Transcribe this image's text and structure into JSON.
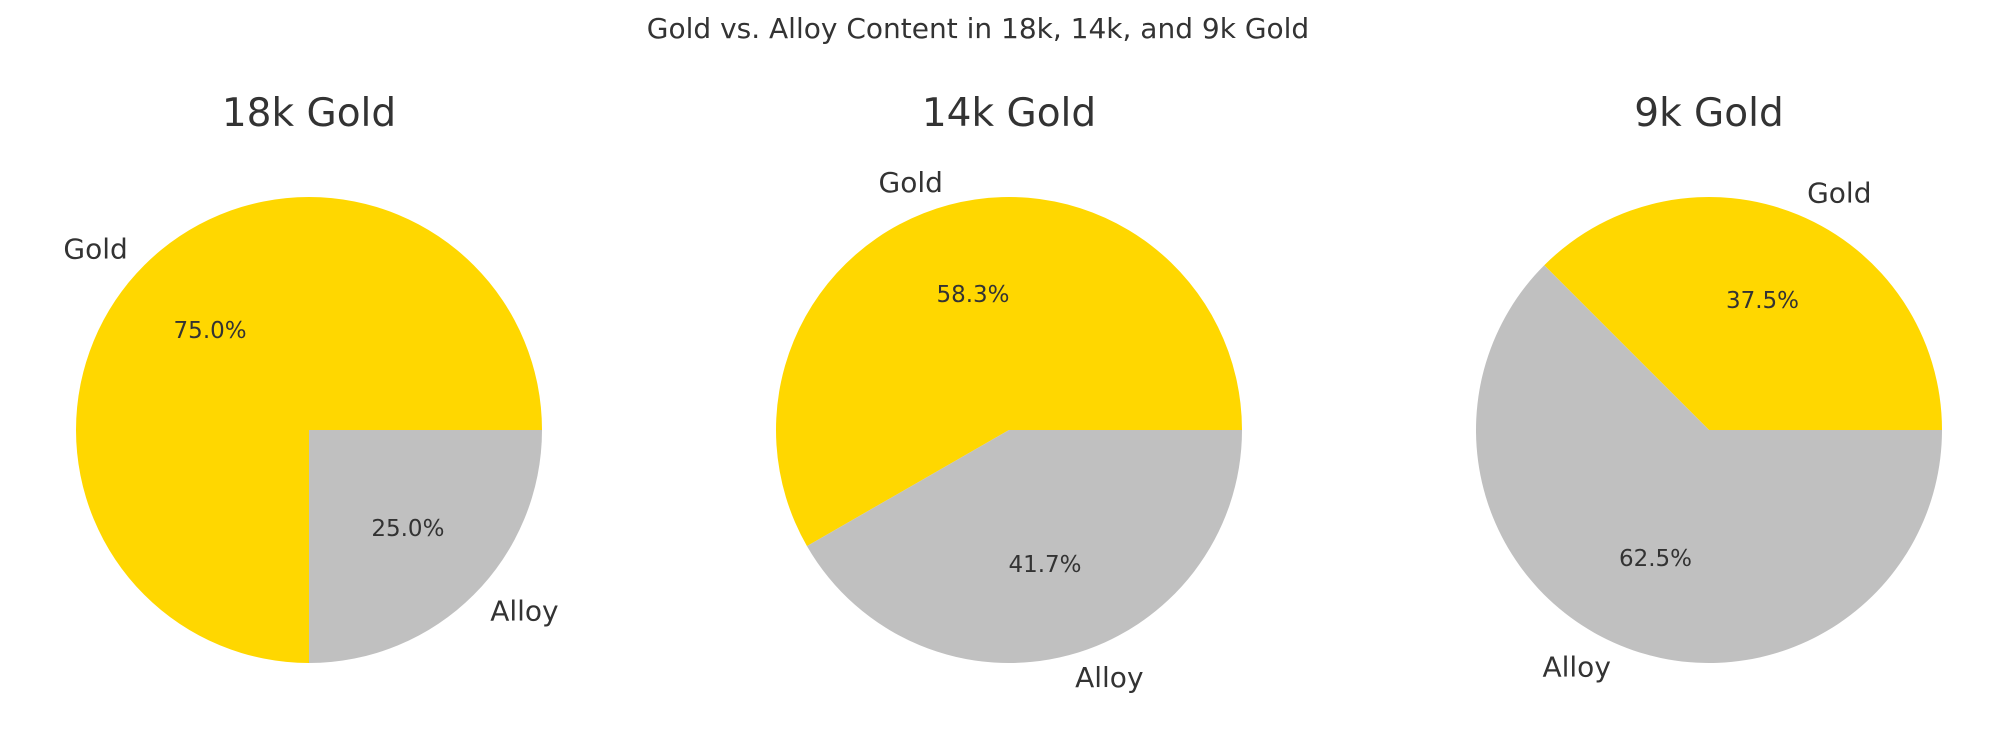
{
  "figure": {
    "title": "Gold vs. Alloy Content in 18k, 14k, and 9k Gold"
  },
  "chart_data": [
    {
      "type": "pie",
      "title": "18k Gold",
      "labels": [
        "Gold",
        "Alloy"
      ],
      "values": [
        75.0,
        25.0
      ],
      "autopct": [
        "75.0%",
        "25.0%"
      ],
      "colors": [
        "#FFD700",
        "#C0C0C0"
      ],
      "start_angle_deg": 0,
      "direction": "counterclockwise"
    },
    {
      "type": "pie",
      "title": "14k Gold",
      "labels": [
        "Gold",
        "Alloy"
      ],
      "values": [
        58.3,
        41.7
      ],
      "autopct": [
        "58.3%",
        "41.7%"
      ],
      "colors": [
        "#FFD700",
        "#C0C0C0"
      ],
      "start_angle_deg": 0,
      "direction": "counterclockwise"
    },
    {
      "type": "pie",
      "title": "9k Gold",
      "labels": [
        "Gold",
        "Alloy"
      ],
      "values": [
        37.5,
        62.5
      ],
      "autopct": [
        "37.5%",
        "62.5%"
      ],
      "colors": [
        "#FFD700",
        "#C0C0C0"
      ],
      "start_angle_deg": 0,
      "direction": "counterclockwise"
    }
  ]
}
